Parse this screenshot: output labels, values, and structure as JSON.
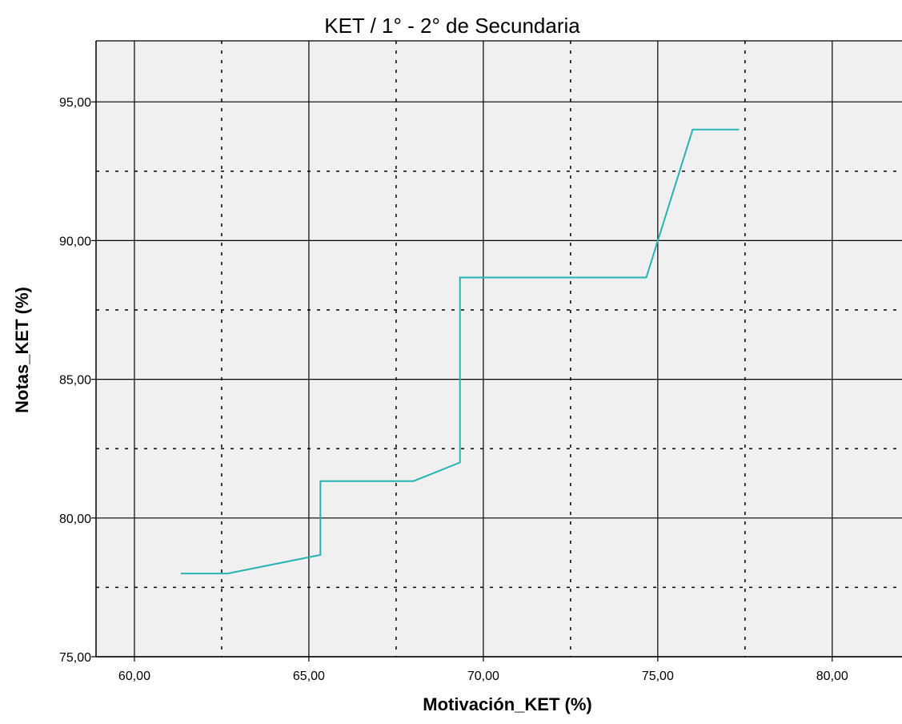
{
  "chart_data": {
    "type": "line",
    "title": "KET / 1° - 2° de Secundaria",
    "xlabel": "Motivación_KET (%)",
    "ylabel": "Notas_KET (%)",
    "xlim": [
      58.9,
      82.0
    ],
    "ylim": [
      75.0,
      97.2
    ],
    "x_ticks": [
      60,
      65,
      70,
      75,
      80
    ],
    "x_tick_labels": [
      "60,00",
      "65,00",
      "70,00",
      "75,00",
      "80,00"
    ],
    "x_minor_ticks": [
      62.5,
      67.5,
      72.5,
      77.5
    ],
    "y_ticks": [
      75,
      80,
      85,
      90,
      95
    ],
    "y_tick_labels": [
      "75,00",
      "80,00",
      "85,00",
      "90,00",
      "95,00"
    ],
    "y_minor_ticks": [
      77.5,
      82.5,
      87.5,
      92.5
    ],
    "grid": true,
    "series": [
      {
        "color": "#26b3b3",
        "x": [
          61.33,
          62.67,
          65.33,
          65.33,
          68.0,
          69.33,
          69.33,
          74.67,
          76.0,
          77.33
        ],
        "y": [
          78.0,
          78.0,
          78.67,
          81.33,
          81.33,
          82.0,
          88.67,
          88.67,
          94.0,
          94.0
        ]
      }
    ],
    "colors": {
      "plot_background": "#f0f0f0",
      "major_grid": "#000000",
      "minor_grid": "#000000"
    }
  }
}
